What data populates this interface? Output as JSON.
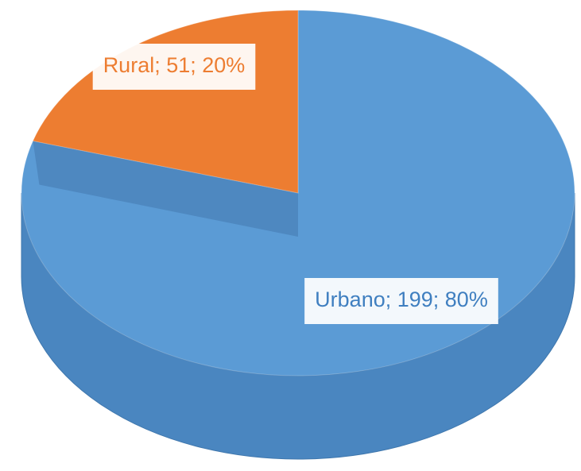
{
  "chart_data": {
    "type": "pie",
    "categories": [
      "Urbano",
      "Rural"
    ],
    "values": [
      199,
      51
    ],
    "percentages": [
      80,
      20
    ],
    "value_labels": [
      "Urbano; 199; 80%",
      "Rural; 51; 20%"
    ],
    "colors": [
      "#5b9bd5",
      "#ed7d31"
    ],
    "start_angle": -90
  }
}
